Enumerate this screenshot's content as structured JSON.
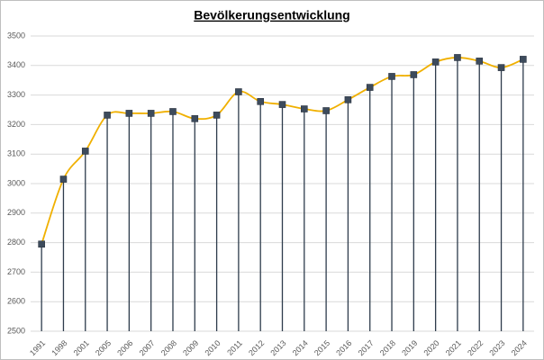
{
  "chart_data": {
    "type": "line",
    "title": "Bevölkerungsentwicklung",
    "categories": [
      "1991",
      "1998",
      "2001",
      "2005",
      "2006",
      "2007",
      "2008",
      "2009",
      "2010",
      "2011",
      "2012",
      "2013",
      "2014",
      "2015",
      "2016",
      "2017",
      "2018",
      "2019",
      "2020",
      "2021",
      "2022",
      "2023",
      "2024"
    ],
    "values": [
      2795,
      3015,
      3110,
      3232,
      3238,
      3238,
      3244,
      3220,
      3232,
      3311,
      3278,
      3268,
      3253,
      3247,
      3284,
      3326,
      3363,
      3369,
      3412,
      3427,
      3415,
      3393,
      3421
    ],
    "color": "#f0b000",
    "marker_color": "#3d4b5c",
    "drop_line_color": "#2e3c4c",
    "ylim": [
      2500,
      3500
    ],
    "yticks": [
      2500,
      2600,
      2700,
      2800,
      2900,
      3000,
      3100,
      3200,
      3300,
      3400,
      3500
    ],
    "grid": true
  }
}
